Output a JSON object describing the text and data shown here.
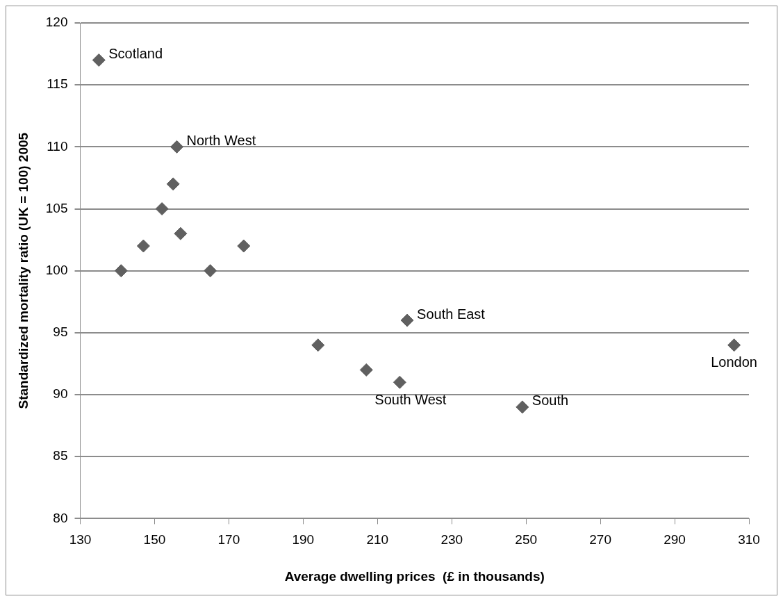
{
  "chart_data": {
    "type": "scatter",
    "xlabel": "Average dwelling prices  (£ in thousands)",
    "ylabel": "Standardized mortality ratio (UK = 100) 2005",
    "x": [
      135,
      156,
      155,
      152,
      147,
      141,
      157,
      165,
      174,
      194,
      207,
      216,
      218,
      249,
      306
    ],
    "series": [
      {
        "color": "#606060",
        "values": [
          117,
          110,
          107,
          105,
          102,
          100,
          103,
          100,
          102,
          94,
          92,
          91,
          96,
          89,
          94
        ]
      }
    ],
    "xlim": [
      130,
      310
    ],
    "xticks": [
      130,
      150,
      170,
      190,
      210,
      230,
      250,
      270,
      290,
      310
    ],
    "ylim": [
      80,
      120
    ],
    "yticks": [
      80,
      85,
      90,
      95,
      100,
      105,
      110,
      115,
      120
    ],
    "grid": "y",
    "legend": false,
    "marker": "diamond",
    "annotations": [
      {
        "text": "Scotland",
        "x": 135,
        "y": 117
      },
      {
        "text": "North West",
        "x": 156,
        "y": 110
      },
      {
        "text": "South East",
        "x": 218,
        "y": 96
      },
      {
        "text": "South West",
        "x": 216,
        "y": 91
      },
      {
        "text": "South",
        "x": 249,
        "y": 89
      },
      {
        "text": "London",
        "x": 306,
        "y": 94
      }
    ]
  }
}
